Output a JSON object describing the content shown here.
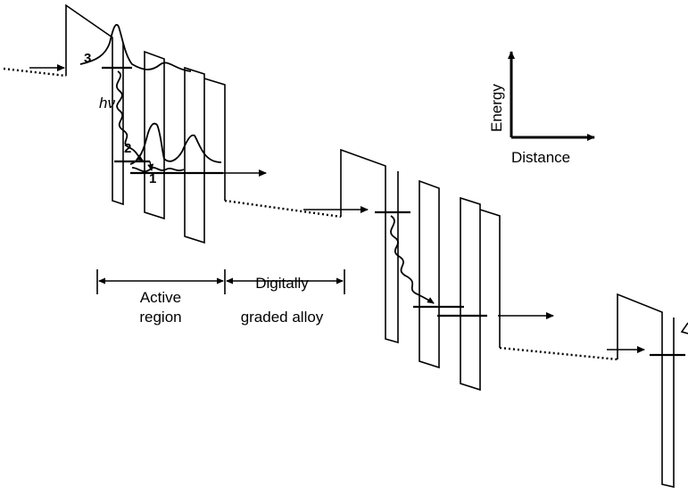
{
  "labels": {
    "level_3": "3",
    "level_2": "2",
    "level_1": "1",
    "photon": "hν",
    "energy_axis": "Energy",
    "distance_axis": "Distance",
    "region_active_line1": "Active",
    "region_active_line2": "region",
    "region_graded_line1": "Digitally",
    "region_graded_line2": "graded alloy"
  }
}
